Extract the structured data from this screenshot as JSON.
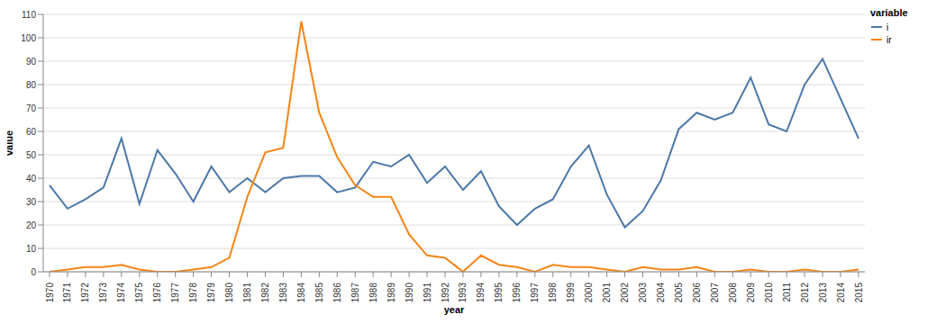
{
  "chart_data": {
    "type": "line",
    "x_label": "year",
    "y_label": "value",
    "legend_title": "variable",
    "legend": "right",
    "grid": true,
    "categories": [
      "1970",
      "1971",
      "1972",
      "1973",
      "1974",
      "1975",
      "1976",
      "1977",
      "1978",
      "1979",
      "1980",
      "1981",
      "1982",
      "1983",
      "1984",
      "1985",
      "1986",
      "1987",
      "1988",
      "1989",
      "1990",
      "1991",
      "1992",
      "1993",
      "1994",
      "1995",
      "1996",
      "1997",
      "1998",
      "1999",
      "2000",
      "2001",
      "2002",
      "2003",
      "2004",
      "2005",
      "2006",
      "2007",
      "2008",
      "2009",
      "2010",
      "2011",
      "2012",
      "2013",
      "2014",
      "2015"
    ],
    "series": [
      {
        "name": "i",
        "color": "#4c78a8",
        "values": [
          37,
          27,
          31,
          36,
          57,
          29,
          52,
          42,
          30,
          45,
          34,
          40,
          34,
          40,
          41,
          41,
          34,
          36,
          47,
          45,
          50,
          38,
          45,
          35,
          43,
          28,
          20,
          27,
          31,
          45,
          54,
          33,
          19,
          26,
          39,
          61,
          68,
          65,
          68,
          83,
          63,
          60,
          80,
          91,
          74,
          57
        ]
      },
      {
        "name": "ir",
        "color": "#f58518",
        "values": [
          0,
          1,
          2,
          2,
          3,
          1,
          0,
          0,
          1,
          2,
          6,
          32,
          51,
          53,
          107,
          68,
          49,
          37,
          32,
          32,
          16,
          7,
          6,
          0,
          7,
          3,
          2,
          0,
          3,
          2,
          2,
          1,
          0,
          2,
          1,
          1,
          2,
          0,
          0,
          1,
          0,
          0,
          1,
          0,
          0,
          1
        ]
      }
    ],
    "ylim": [
      0,
      110
    ],
    "yticks": [
      0,
      10,
      20,
      30,
      40,
      50,
      60,
      70,
      80,
      90,
      100,
      110
    ]
  }
}
